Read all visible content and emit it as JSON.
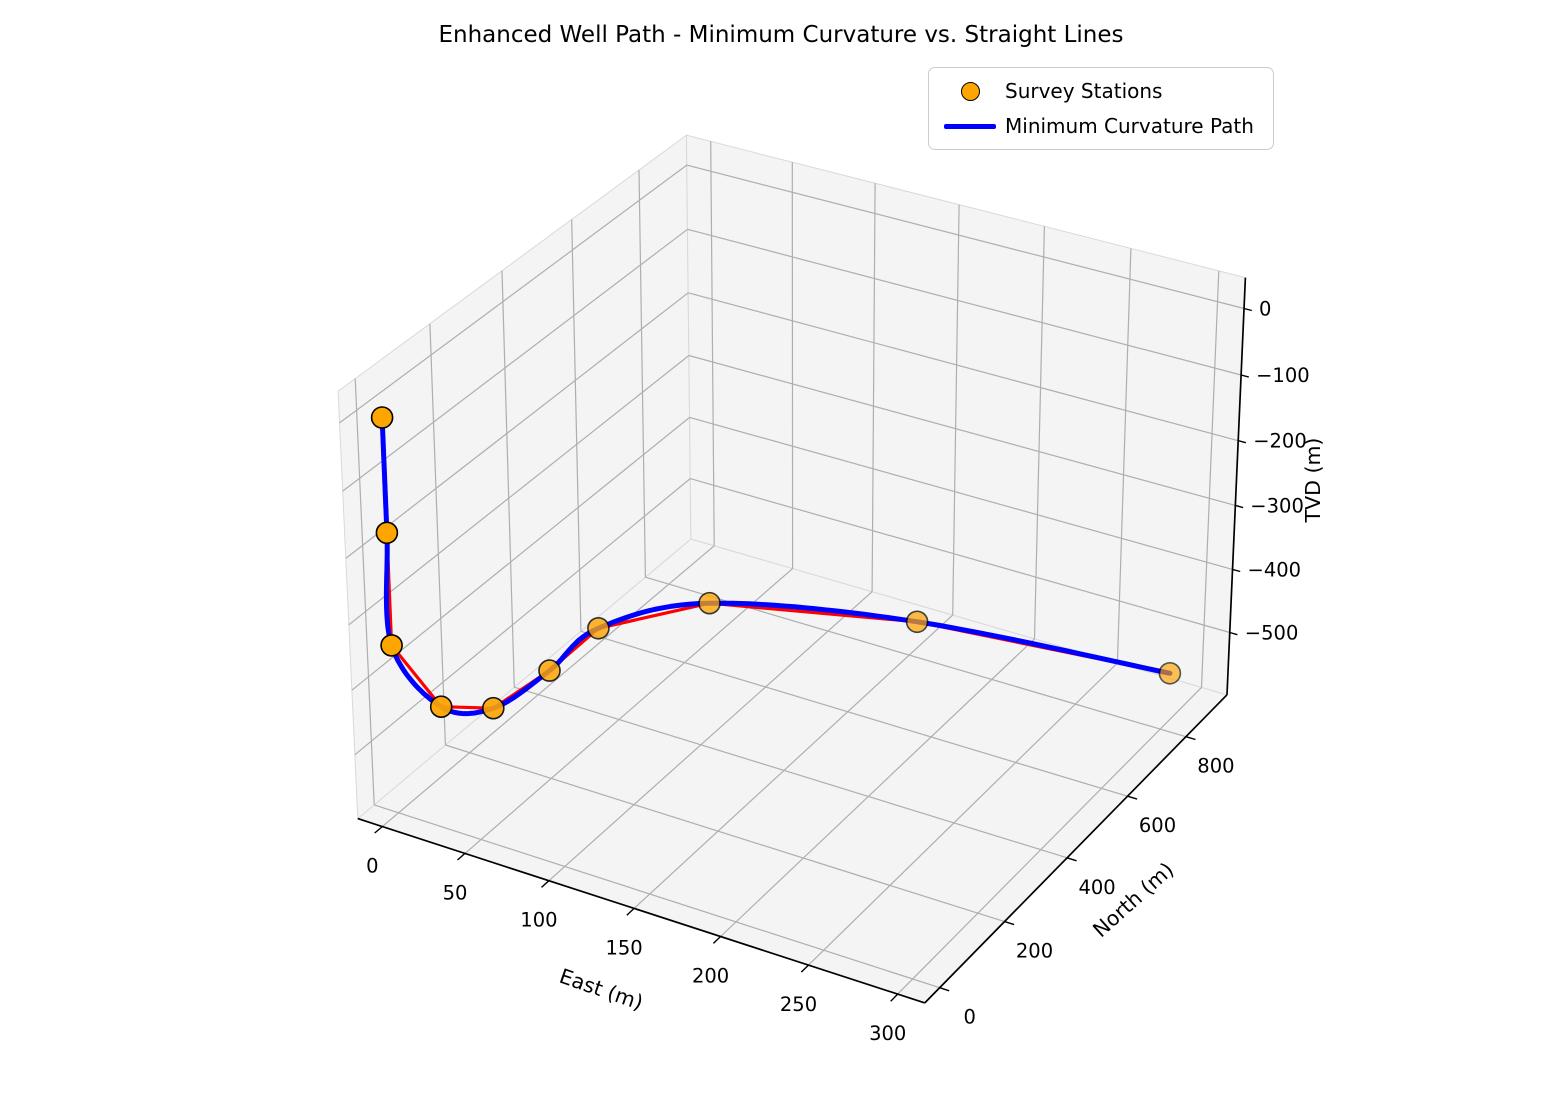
{
  "title": "Enhanced Well Path - Minimum Curvature vs. Straight Lines",
  "legend": {
    "items": [
      {
        "label": "Survey Stations",
        "type": "marker",
        "color": "#FFA500",
        "edge_color": "#000000"
      },
      {
        "label": "Minimum Curvature Path",
        "type": "line",
        "color": "#0000FF"
      }
    ]
  },
  "chart_data": {
    "type": "line",
    "subtype": "3d-well-path",
    "title": "Enhanced Well Path - Minimum Curvature vs. Straight Lines",
    "axes": {
      "x": {
        "label": "East (m)",
        "ticks": [
          0,
          50,
          100,
          150,
          200,
          250,
          300
        ],
        "range": [
          -15,
          315
        ]
      },
      "y": {
        "label": "North (m)",
        "ticks": [
          0,
          200,
          400,
          600,
          800
        ],
        "range": [
          -45,
          945
        ]
      },
      "z": {
        "label": "TVD (m)",
        "ticks": [
          0,
          -100,
          -200,
          -300,
          -400,
          -500
        ],
        "range": [
          -600,
          46
        ]
      }
    },
    "grid": true,
    "legend_position": "upper right",
    "colors": {
      "minimum_curvature_path": "#0000FF",
      "straight_line_path": "#FF0000",
      "survey_station_fill": "#FFA500",
      "survey_station_edge": "#000000",
      "pane": "#F4F4F4",
      "grid_line": "#AEAEAE",
      "spine": "#000000"
    },
    "series": [
      {
        "name": "Survey Stations",
        "type": "scatter3d",
        "points": [
          {
            "east": 0,
            "north": 0,
            "tvd": 0
          },
          {
            "east": 0,
            "north": 0,
            "tvd": -170
          },
          {
            "east": 0,
            "north": 0,
            "tvd": -340
          },
          {
            "east": 15,
            "north": 60,
            "tvd": -450
          },
          {
            "east": 30,
            "north": 135,
            "tvd": -475
          },
          {
            "east": 42,
            "north": 240,
            "tvd": -455
          },
          {
            "east": 50,
            "north": 345,
            "tvd": -430
          },
          {
            "east": 90,
            "north": 480,
            "tvd": -420
          },
          {
            "east": 180,
            "north": 660,
            "tvd": -460
          },
          {
            "east": 290,
            "north": 890,
            "tvd": -560
          }
        ]
      },
      {
        "name": "Minimum Curvature Path",
        "type": "smooth-curve-through-stations",
        "color": "#0000FF"
      },
      {
        "name": "Straight Line Path",
        "type": "straight-segments-through-stations",
        "color": "#FF0000"
      }
    ]
  }
}
